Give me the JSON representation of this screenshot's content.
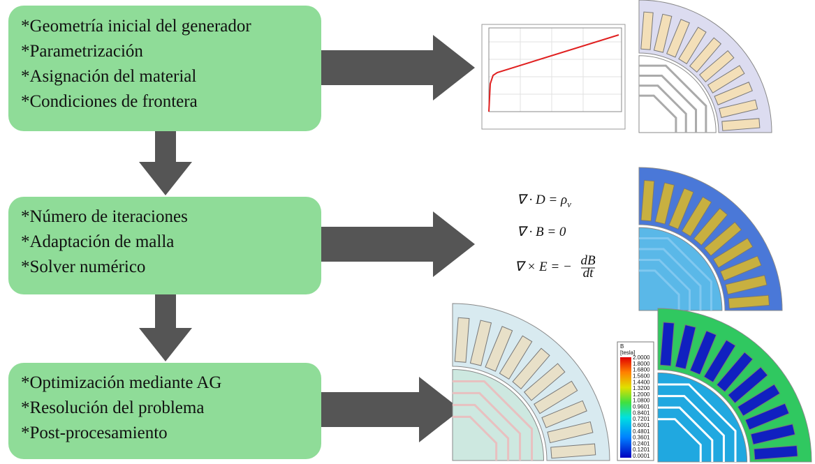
{
  "steps": [
    {
      "items": [
        "*Geometría inicial del generador",
        "*Parametrización",
        "*Asignación del material",
        "*Condiciones de frontera"
      ]
    },
    {
      "items": [
        "*Número de iteraciones",
        "*Adaptación de malla",
        "*Solver numérico"
      ]
    },
    {
      "items": [
        "*Optimización mediante AG",
        "*Resolución del problema",
        "*Post-procesamiento"
      ]
    }
  ],
  "equations": [
    "∇ · D = ρ",
    "∇ · B = 0",
    "∇ × E = −"
  ],
  "equation_parts": {
    "subscript": "v",
    "numerator": "dB",
    "denominator": "dt"
  },
  "colorbar": {
    "title": "B",
    "unit": "[tesla]",
    "labels": [
      "2.0000",
      "1.8000",
      "1.6800",
      "1.5600",
      "1.4400",
      "1.3200",
      "1.2000",
      "1.0800",
      "0.9601",
      "0.8401",
      "0.7201",
      "0.6001",
      "0.4801",
      "0.3601",
      "0.2401",
      "0.1201",
      "0.0001"
    ]
  }
}
